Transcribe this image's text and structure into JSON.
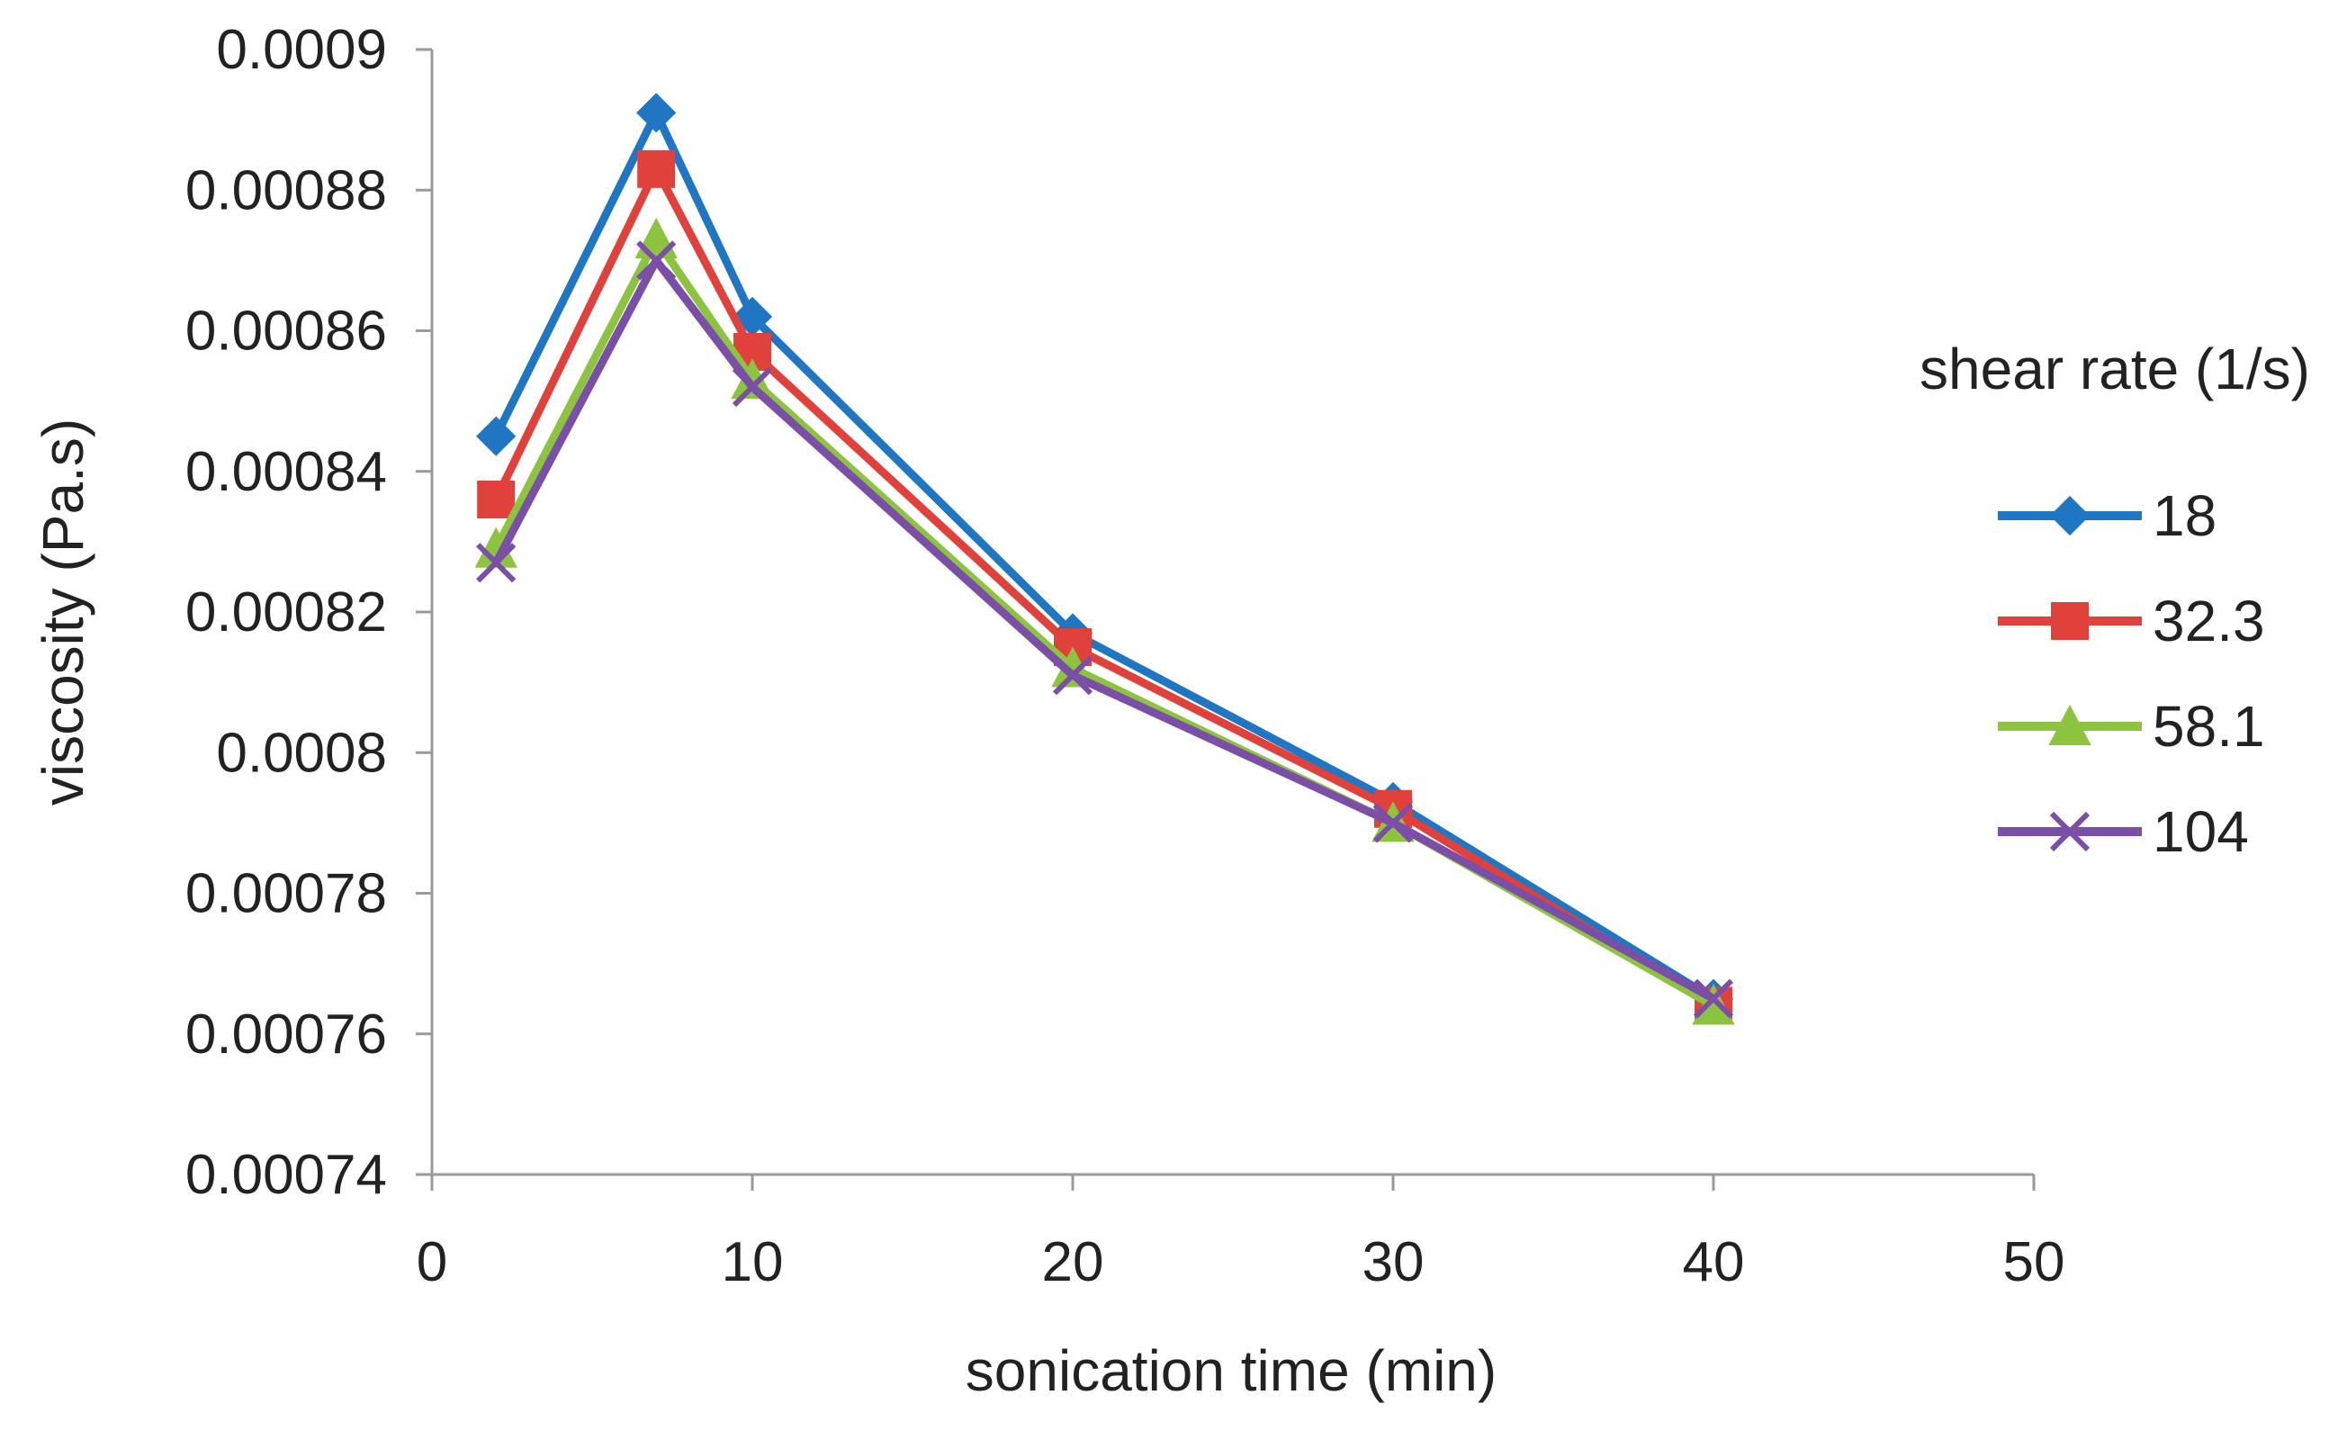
{
  "chart_data": {
    "type": "line",
    "title": "",
    "xlabel": "sonication time (min)",
    "ylabel": "viscosity (Pa.s)",
    "xlim": [
      0,
      50
    ],
    "ylim": [
      0.00074,
      0.0009
    ],
    "x_ticks": [
      0,
      10,
      20,
      30,
      40,
      50
    ],
    "x_tick_labels": [
      "0",
      "10",
      "20",
      "30",
      "40",
      "50"
    ],
    "y_ticks": [
      0.00074,
      0.00076,
      0.00078,
      0.0008,
      0.00082,
      0.00084,
      0.00086,
      0.00088,
      0.0009
    ],
    "y_tick_labels": [
      "0.00074",
      "0.00076",
      "0.00078",
      "0.0008",
      "0.00082",
      "0.00084",
      "0.00086",
      "0.00088",
      "0.0009"
    ],
    "grid": false,
    "legend": {
      "title": "shear rate (1/s)",
      "position": "right"
    },
    "x": [
      2,
      7,
      10,
      20,
      30,
      40
    ],
    "series": [
      {
        "name": "18",
        "color": "#1f77c4",
        "marker": "diamond",
        "values": [
          0.000845,
          0.000891,
          0.000862,
          0.000817,
          0.000793,
          0.000765
        ]
      },
      {
        "name": "32.3",
        "color": "#e0413b",
        "marker": "square",
        "values": [
          0.000836,
          0.000883,
          0.000857,
          0.000815,
          0.000792,
          0.000764
        ]
      },
      {
        "name": "58.1",
        "color": "#8cc43f",
        "marker": "triangle",
        "values": [
          0.000829,
          0.000873,
          0.000853,
          0.000812,
          0.00079,
          0.000764
        ]
      },
      {
        "name": "104",
        "color": "#7b4fa8",
        "marker": "x",
        "values": [
          0.000827,
          0.00087,
          0.000852,
          0.000811,
          0.00079,
          0.000765
        ]
      }
    ]
  }
}
